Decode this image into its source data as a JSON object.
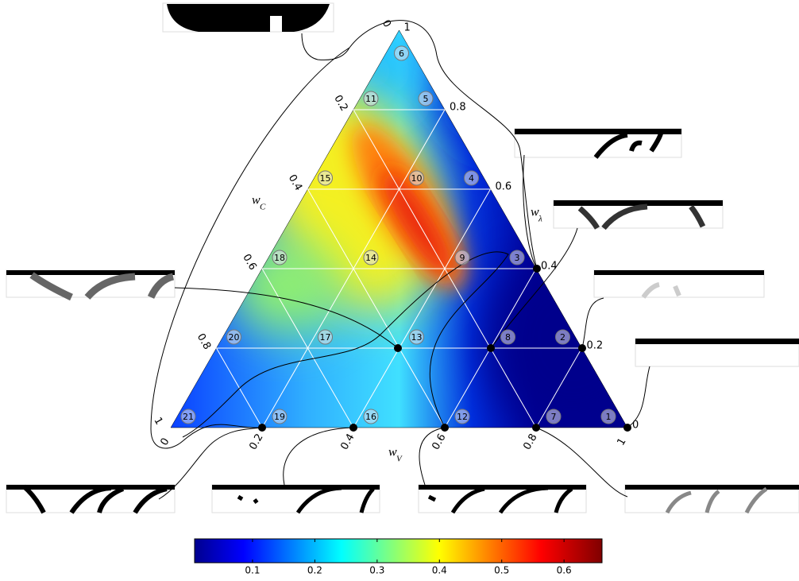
{
  "chart_data": {
    "type": "ternary",
    "axes": {
      "left": {
        "label": "w",
        "sub": "C",
        "ticks": [
          0,
          0.2,
          0.4,
          0.6,
          0.8,
          1
        ]
      },
      "right": {
        "label": "w",
        "sub": "λ",
        "ticks": [
          0,
          0.2,
          0.4,
          0.6,
          0.8,
          1
        ]
      },
      "bottom": {
        "label": "w",
        "sub": "V",
        "ticks": [
          0,
          0.2,
          0.4,
          0.6,
          0.8,
          1
        ]
      }
    },
    "points": [
      {
        "label": 1,
        "w": [
          0,
          0,
          1
        ]
      },
      {
        "label": 2,
        "w": [
          0,
          0.2,
          0.8
        ]
      },
      {
        "label": 3,
        "w": [
          0,
          0.4,
          0.6
        ]
      },
      {
        "label": 4,
        "w": [
          0,
          0.6,
          0.4
        ]
      },
      {
        "label": 5,
        "w": [
          0,
          0.8,
          0.2
        ]
      },
      {
        "label": 6,
        "w": [
          0,
          1,
          0
        ]
      },
      {
        "label": 7,
        "w": [
          0.2,
          0,
          0.8
        ]
      },
      {
        "label": 8,
        "w": [
          0.2,
          0.2,
          0.6
        ]
      },
      {
        "label": 9,
        "w": [
          0.2,
          0.4,
          0.4
        ]
      },
      {
        "label": 10,
        "w": [
          0.2,
          0.6,
          0.2
        ]
      },
      {
        "label": 11,
        "w": [
          0.2,
          0.8,
          0
        ]
      },
      {
        "label": 12,
        "w": [
          0.4,
          0,
          0.6
        ]
      },
      {
        "label": 13,
        "w": [
          0.4,
          0.2,
          0.4
        ]
      },
      {
        "label": 14,
        "w": [
          0.4,
          0.4,
          0.2
        ]
      },
      {
        "label": 15,
        "w": [
          0.4,
          0.6,
          0
        ]
      },
      {
        "label": 16,
        "w": [
          0.6,
          0,
          0.4
        ]
      },
      {
        "label": 17,
        "w": [
          0.6,
          0.2,
          0.2
        ]
      },
      {
        "label": 18,
        "w": [
          0.6,
          0.4,
          0
        ]
      },
      {
        "label": 19,
        "w": [
          0.8,
          0,
          0.2
        ]
      },
      {
        "label": 20,
        "w": [
          0.8,
          0.2,
          0
        ]
      },
      {
        "label": 21,
        "w": [
          1,
          0,
          0
        ]
      }
    ],
    "colorbar": {
      "range": [
        0.007,
        0.661
      ],
      "ticks": [
        0.1,
        0.2,
        0.3,
        0.4,
        0.5,
        0.6
      ]
    }
  }
}
